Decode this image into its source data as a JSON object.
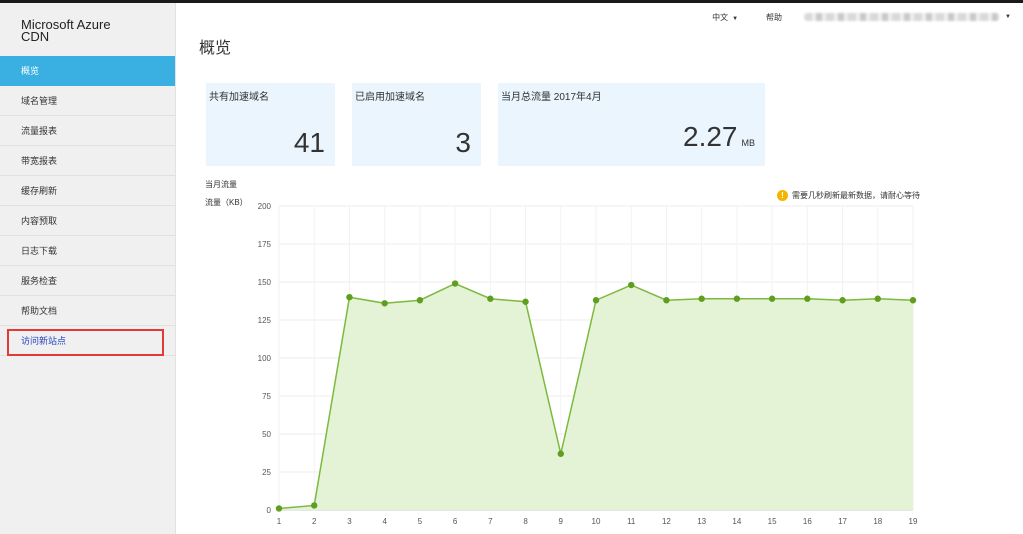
{
  "app": {
    "title_line1": "Microsoft Azure",
    "title_line2": "CDN"
  },
  "sidebar": {
    "items": [
      {
        "label": "概览",
        "active": true
      },
      {
        "label": "域名管理"
      },
      {
        "label": "流量报表"
      },
      {
        "label": "带宽报表"
      },
      {
        "label": "缓存刷新"
      },
      {
        "label": "内容预取"
      },
      {
        "label": "日志下载"
      },
      {
        "label": "服务检查"
      },
      {
        "label": "帮助文档"
      },
      {
        "label": "访问新站点"
      }
    ]
  },
  "header": {
    "language": "中文",
    "help": "帮助"
  },
  "page": {
    "title": "概览"
  },
  "cards": [
    {
      "label": "共有加速域名",
      "value": "41",
      "unit": ""
    },
    {
      "label": "已启用加速域名",
      "value": "3",
      "unit": ""
    },
    {
      "label": "当月总流量 2017年4月",
      "value": "2.27",
      "unit": "MB"
    }
  ],
  "notice": {
    "text": "需要几秒刷新最新数据，请耐心等待"
  },
  "chart_data": {
    "type": "area",
    "title": "当月流量",
    "ylabel": "流量（KB）",
    "xlabel": "",
    "x": [
      1,
      2,
      3,
      4,
      5,
      6,
      7,
      8,
      9,
      10,
      11,
      12,
      13,
      14,
      15,
      16,
      17,
      18,
      19
    ],
    "values": [
      1,
      3,
      140,
      136,
      138,
      149,
      139,
      137,
      37,
      138,
      148,
      138,
      139,
      139,
      139,
      139,
      138,
      139,
      138
    ],
    "ylim": [
      0,
      200
    ],
    "yticks": [
      0,
      25,
      50,
      75,
      100,
      125,
      150,
      175,
      200
    ],
    "grid": true,
    "colors": {
      "line": "#7cb93e",
      "fill": "#e4f2d6",
      "point": "#5f9e1e"
    }
  }
}
